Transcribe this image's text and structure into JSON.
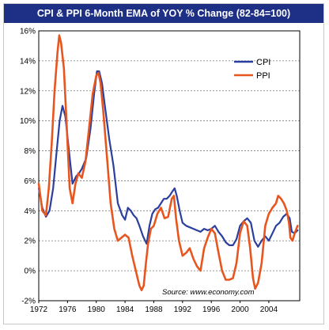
{
  "chart_data": {
    "type": "line",
    "title": "CPI & PPI 6-Month EMA of YOY % Change (82-84=100)",
    "xlabel": "",
    "ylabel": "",
    "xlim": [
      1972,
      2008.3
    ],
    "ylim": [
      -2,
      16
    ],
    "x_ticks": [
      "1972",
      "1976",
      "1980",
      "1984",
      "1988",
      "1992",
      "1996",
      "2000",
      "2004"
    ],
    "y_ticks": [
      "-2%",
      "0%",
      "2%",
      "4%",
      "6%",
      "8%",
      "10%",
      "12%",
      "14%",
      "16%"
    ],
    "grid": true,
    "legend_position": "top-right",
    "annotation": "Source: www.economy.com",
    "series": [
      {
        "name": "CPI",
        "color": "#2a3f9e",
        "x": [
          1972.0,
          1972.5,
          1973.0,
          1973.5,
          1974.0,
          1974.5,
          1974.9,
          1975.3,
          1975.7,
          1976.2,
          1976.7,
          1977.2,
          1977.6,
          1978.0,
          1978.6,
          1979.2,
          1979.7,
          1980.1,
          1980.4,
          1980.8,
          1981.2,
          1981.8,
          1982.4,
          1983.0,
          1983.6,
          1984.0,
          1984.4,
          1984.8,
          1985.2,
          1985.6,
          1986.0,
          1986.5,
          1987.0,
          1987.4,
          1987.8,
          1988.2,
          1988.6,
          1989.0,
          1989.4,
          1989.8,
          1990.2,
          1990.6,
          1990.9,
          1991.2,
          1991.6,
          1992.0,
          1992.5,
          1993.0,
          1993.5,
          1994.0,
          1994.5,
          1995.0,
          1995.5,
          1996.0,
          1996.5,
          1997.0,
          1997.5,
          1998.0,
          1998.5,
          1999.0,
          1999.5,
          2000.0,
          2000.5,
          2001.0,
          2001.5,
          2002.0,
          2002.5,
          2003.0,
          2003.5,
          2004.0,
          2004.5,
          2005.0,
          2005.5,
          2006.0,
          2006.5,
          2006.9,
          2007.2,
          2007.6,
          2008.0
        ],
        "y": [
          5.5,
          4.2,
          3.6,
          4.0,
          5.5,
          8.0,
          10.0,
          11.0,
          10.3,
          8.0,
          5.8,
          6.3,
          6.5,
          6.8,
          7.5,
          9.5,
          11.8,
          13.3,
          13.3,
          12.5,
          11.0,
          8.8,
          7.0,
          4.5,
          3.7,
          3.4,
          4.2,
          4.0,
          3.7,
          3.5,
          3.0,
          2.3,
          1.8,
          3.0,
          3.8,
          4.1,
          4.2,
          4.5,
          4.8,
          4.8,
          5.0,
          5.3,
          5.5,
          5.0,
          4.0,
          3.2,
          3.0,
          2.9,
          2.8,
          2.7,
          2.6,
          2.8,
          2.7,
          2.8,
          3.0,
          2.6,
          2.3,
          1.9,
          1.7,
          1.7,
          2.1,
          3.0,
          3.3,
          3.5,
          3.2,
          2.0,
          1.6,
          2.0,
          2.3,
          2.0,
          2.5,
          3.0,
          3.2,
          3.6,
          3.8,
          3.5,
          2.6,
          2.5,
          2.7
        ]
      },
      {
        "name": "PPI",
        "color": "#e8561f",
        "x": [
          1972.0,
          1972.5,
          1973.0,
          1973.4,
          1973.8,
          1974.2,
          1974.6,
          1974.85,
          1975.1,
          1975.5,
          1975.9,
          1976.3,
          1976.7,
          1977.1,
          1977.5,
          1978.0,
          1978.5,
          1979.0,
          1979.5,
          1980.0,
          1980.3,
          1980.6,
          1981.0,
          1981.5,
          1982.0,
          1982.5,
          1983.0,
          1983.5,
          1984.0,
          1984.5,
          1985.0,
          1985.5,
          1986.0,
          1986.3,
          1986.6,
          1986.9,
          1987.2,
          1987.6,
          1988.0,
          1988.5,
          1989.0,
          1989.5,
          1990.0,
          1990.5,
          1990.8,
          1991.1,
          1991.5,
          1992.0,
          1992.5,
          1993.0,
          1993.5,
          1994.0,
          1994.5,
          1995.0,
          1995.5,
          1996.0,
          1996.5,
          1997.0,
          1997.5,
          1998.0,
          1998.5,
          1999.0,
          1999.5,
          2000.0,
          2000.5,
          2001.0,
          2001.4,
          2001.8,
          2002.1,
          2002.5,
          2003.0,
          2003.5,
          2004.0,
          2004.5,
          2005.0,
          2005.3,
          2005.7,
          2006.1,
          2006.5,
          2006.8,
          2007.0,
          2007.3,
          2007.6,
          2008.0
        ],
        "y": [
          5.8,
          4.0,
          3.7,
          5.5,
          8.5,
          12.0,
          14.5,
          15.7,
          15.2,
          13.5,
          9.5,
          5.5,
          4.5,
          5.8,
          6.5,
          6.2,
          7.3,
          9.5,
          11.8,
          13.0,
          13.2,
          12.5,
          10.5,
          7.5,
          4.5,
          2.8,
          2.0,
          2.2,
          2.4,
          2.2,
          1.0,
          0.0,
          -1.0,
          -1.3,
          -1.0,
          0.5,
          1.8,
          2.8,
          3.0,
          3.8,
          4.2,
          3.5,
          3.6,
          4.8,
          5.0,
          3.5,
          2.0,
          1.0,
          1.2,
          1.5,
          0.8,
          0.3,
          0.0,
          1.5,
          2.2,
          2.8,
          2.5,
          1.2,
          0.0,
          -0.6,
          -0.6,
          -0.5,
          0.5,
          2.5,
          3.3,
          3.0,
          1.5,
          -0.5,
          -1.2,
          -0.8,
          0.5,
          3.0,
          3.8,
          4.2,
          4.5,
          5.0,
          4.8,
          4.5,
          4.0,
          3.2,
          2.2,
          2.0,
          2.5,
          3.0
        ]
      }
    ]
  }
}
